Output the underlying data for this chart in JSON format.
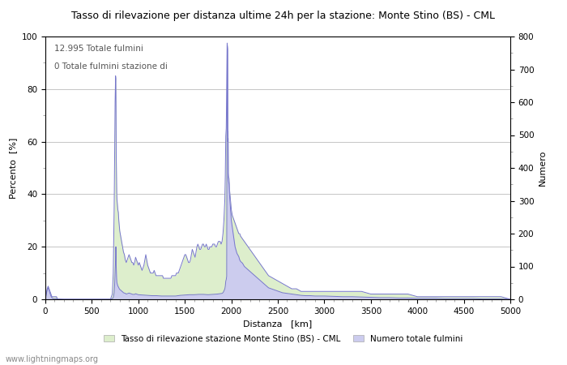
{
  "title": "Tasso di rilevazione per distanza ultime 24h per la stazione: Monte Stino (BS) - CML",
  "xlabel": "Distanza   [km]",
  "ylabel_left": "Percento  [%]",
  "ylabel_right": "Numero",
  "annotation_line1": "12.995 Totale fulmini",
  "annotation_line2": "0 Totale fulmini stazione di",
  "xlim": [
    0,
    5000
  ],
  "ylim_left": [
    0,
    100
  ],
  "ylim_right": [
    0,
    800
  ],
  "xticks": [
    0,
    500,
    1000,
    1500,
    2000,
    2500,
    3000,
    3500,
    4000,
    4500,
    5000
  ],
  "yticks_left": [
    0,
    20,
    40,
    60,
    80,
    100
  ],
  "yticks_right": [
    0,
    100,
    200,
    300,
    400,
    500,
    600,
    700,
    800
  ],
  "legend_label_green": "Tasso di rilevazione stazione Monte Stino (BS) - CML",
  "legend_label_blue": "Numero totale fulmini",
  "watermark": "www.lightningmaps.org",
  "background_color": "#ffffff",
  "plot_bg_color": "#ffffff",
  "grid_color": "#999999",
  "line_color": "#7777cc",
  "fill_color_blue": "#ccccee",
  "fill_color_green": "#ddeecc",
  "detection_rate": [
    [
      0,
      0
    ],
    [
      10,
      2
    ],
    [
      20,
      4
    ],
    [
      30,
      5
    ],
    [
      40,
      4
    ],
    [
      50,
      3
    ],
    [
      60,
      2
    ],
    [
      70,
      1
    ],
    [
      80,
      1
    ],
    [
      90,
      1
    ],
    [
      100,
      1
    ],
    [
      110,
      1
    ],
    [
      120,
      1
    ],
    [
      130,
      0
    ],
    [
      140,
      0
    ],
    [
      150,
      0
    ],
    [
      160,
      0
    ],
    [
      170,
      0
    ],
    [
      180,
      0
    ],
    [
      190,
      0
    ],
    [
      200,
      0
    ],
    [
      210,
      0
    ],
    [
      220,
      0
    ],
    [
      230,
      0
    ],
    [
      240,
      0
    ],
    [
      250,
      0
    ],
    [
      260,
      0
    ],
    [
      270,
      0
    ],
    [
      280,
      0
    ],
    [
      290,
      0
    ],
    [
      300,
      0
    ],
    [
      310,
      0
    ],
    [
      320,
      0
    ],
    [
      330,
      0
    ],
    [
      340,
      0
    ],
    [
      350,
      0
    ],
    [
      360,
      0
    ],
    [
      370,
      0
    ],
    [
      380,
      0
    ],
    [
      390,
      0
    ],
    [
      400,
      0
    ],
    [
      410,
      0
    ],
    [
      420,
      0
    ],
    [
      430,
      0
    ],
    [
      440,
      0
    ],
    [
      450,
      0
    ],
    [
      460,
      0
    ],
    [
      470,
      0
    ],
    [
      480,
      0
    ],
    [
      490,
      0
    ],
    [
      500,
      0
    ],
    [
      510,
      0
    ],
    [
      520,
      0
    ],
    [
      530,
      0
    ],
    [
      540,
      0
    ],
    [
      550,
      0
    ],
    [
      560,
      0
    ],
    [
      570,
      0
    ],
    [
      580,
      0
    ],
    [
      590,
      0
    ],
    [
      600,
      0
    ],
    [
      610,
      0
    ],
    [
      620,
      0
    ],
    [
      630,
      0
    ],
    [
      640,
      0
    ],
    [
      650,
      0
    ],
    [
      660,
      0
    ],
    [
      670,
      0
    ],
    [
      680,
      0
    ],
    [
      690,
      0
    ],
    [
      700,
      0
    ],
    [
      710,
      1
    ],
    [
      720,
      2
    ],
    [
      730,
      10
    ],
    [
      740,
      35
    ],
    [
      745,
      55
    ],
    [
      750,
      75
    ],
    [
      755,
      85
    ],
    [
      758,
      84
    ],
    [
      760,
      73
    ],
    [
      762,
      55
    ],
    [
      764,
      50
    ],
    [
      766,
      43
    ],
    [
      768,
      40
    ],
    [
      770,
      38
    ],
    [
      775,
      36
    ],
    [
      780,
      34
    ],
    [
      785,
      33
    ],
    [
      790,
      30
    ],
    [
      795,
      28
    ],
    [
      800,
      26
    ],
    [
      810,
      24
    ],
    [
      820,
      22
    ],
    [
      830,
      20
    ],
    [
      840,
      18
    ],
    [
      850,
      17
    ],
    [
      860,
      15
    ],
    [
      870,
      14
    ],
    [
      880,
      15
    ],
    [
      890,
      16
    ],
    [
      900,
      17
    ],
    [
      910,
      16
    ],
    [
      920,
      15
    ],
    [
      930,
      14
    ],
    [
      940,
      14
    ],
    [
      950,
      13
    ],
    [
      960,
      14
    ],
    [
      970,
      16
    ],
    [
      980,
      15
    ],
    [
      990,
      14
    ],
    [
      1000,
      13
    ],
    [
      1010,
      14
    ],
    [
      1020,
      13
    ],
    [
      1030,
      12
    ],
    [
      1040,
      11
    ],
    [
      1050,
      12
    ],
    [
      1060,
      13
    ],
    [
      1070,
      15
    ],
    [
      1080,
      17
    ],
    [
      1090,
      15
    ],
    [
      1100,
      13
    ],
    [
      1110,
      12
    ],
    [
      1120,
      11
    ],
    [
      1130,
      10
    ],
    [
      1140,
      10
    ],
    [
      1150,
      10
    ],
    [
      1160,
      10
    ],
    [
      1170,
      11
    ],
    [
      1180,
      10
    ],
    [
      1190,
      9
    ],
    [
      1200,
      9
    ],
    [
      1210,
      9
    ],
    [
      1220,
      9
    ],
    [
      1230,
      9
    ],
    [
      1240,
      9
    ],
    [
      1250,
      9
    ],
    [
      1260,
      9
    ],
    [
      1270,
      8
    ],
    [
      1280,
      8
    ],
    [
      1290,
      8
    ],
    [
      1300,
      8
    ],
    [
      1310,
      8
    ],
    [
      1320,
      8
    ],
    [
      1330,
      8
    ],
    [
      1340,
      8
    ],
    [
      1350,
      8
    ],
    [
      1360,
      9
    ],
    [
      1370,
      9
    ],
    [
      1380,
      9
    ],
    [
      1390,
      9
    ],
    [
      1400,
      9
    ],
    [
      1410,
      10
    ],
    [
      1420,
      10
    ],
    [
      1430,
      10
    ],
    [
      1440,
      11
    ],
    [
      1450,
      12
    ],
    [
      1460,
      13
    ],
    [
      1470,
      14
    ],
    [
      1480,
      15
    ],
    [
      1490,
      16
    ],
    [
      1500,
      17
    ],
    [
      1510,
      17
    ],
    [
      1520,
      16
    ],
    [
      1530,
      15
    ],
    [
      1540,
      14
    ],
    [
      1550,
      14
    ],
    [
      1560,
      15
    ],
    [
      1570,
      17
    ],
    [
      1580,
      19
    ],
    [
      1590,
      18
    ],
    [
      1600,
      17
    ],
    [
      1610,
      16
    ],
    [
      1620,
      18
    ],
    [
      1630,
      20
    ],
    [
      1640,
      21
    ],
    [
      1650,
      20
    ],
    [
      1660,
      19
    ],
    [
      1670,
      19
    ],
    [
      1680,
      20
    ],
    [
      1690,
      21
    ],
    [
      1700,
      21
    ],
    [
      1710,
      20
    ],
    [
      1720,
      20
    ],
    [
      1730,
      21
    ],
    [
      1740,
      20
    ],
    [
      1750,
      19
    ],
    [
      1760,
      19
    ],
    [
      1770,
      20
    ],
    [
      1780,
      20
    ],
    [
      1790,
      20
    ],
    [
      1800,
      21
    ],
    [
      1810,
      21
    ],
    [
      1820,
      21
    ],
    [
      1830,
      20
    ],
    [
      1840,
      20
    ],
    [
      1850,
      21
    ],
    [
      1860,
      22
    ],
    [
      1870,
      22
    ],
    [
      1880,
      22
    ],
    [
      1890,
      21
    ],
    [
      1900,
      22
    ],
    [
      1910,
      25
    ],
    [
      1920,
      30
    ],
    [
      1930,
      38
    ],
    [
      1935,
      47
    ],
    [
      1940,
      62
    ],
    [
      1945,
      65
    ],
    [
      1950,
      79
    ],
    [
      1955,
      97
    ],
    [
      1960,
      95
    ],
    [
      1963,
      62
    ],
    [
      1965,
      64
    ],
    [
      1967,
      48
    ],
    [
      1970,
      47
    ],
    [
      1975,
      46
    ],
    [
      1980,
      42
    ],
    [
      1985,
      40
    ],
    [
      1990,
      38
    ],
    [
      1995,
      36
    ],
    [
      2000,
      34
    ],
    [
      2010,
      32
    ],
    [
      2020,
      31
    ],
    [
      2030,
      30
    ],
    [
      2040,
      29
    ],
    [
      2050,
      28
    ],
    [
      2060,
      27
    ],
    [
      2070,
      26
    ],
    [
      2080,
      25
    ],
    [
      2090,
      25
    ],
    [
      2100,
      24
    ],
    [
      2120,
      23
    ],
    [
      2140,
      22
    ],
    [
      2160,
      21
    ],
    [
      2180,
      20
    ],
    [
      2200,
      19
    ],
    [
      2220,
      18
    ],
    [
      2240,
      17
    ],
    [
      2260,
      16
    ],
    [
      2280,
      15
    ],
    [
      2300,
      14
    ],
    [
      2320,
      13
    ],
    [
      2340,
      12
    ],
    [
      2360,
      11
    ],
    [
      2380,
      10
    ],
    [
      2400,
      9
    ],
    [
      2450,
      8
    ],
    [
      2500,
      7
    ],
    [
      2550,
      6
    ],
    [
      2600,
      5
    ],
    [
      2650,
      4
    ],
    [
      2700,
      4
    ],
    [
      2750,
      3
    ],
    [
      2800,
      3
    ],
    [
      2850,
      3
    ],
    [
      2900,
      3
    ],
    [
      2950,
      3
    ],
    [
      3000,
      3
    ],
    [
      3100,
      3
    ],
    [
      3200,
      3
    ],
    [
      3300,
      3
    ],
    [
      3400,
      3
    ],
    [
      3500,
      2
    ],
    [
      3600,
      2
    ],
    [
      3700,
      2
    ],
    [
      3800,
      2
    ],
    [
      3900,
      2
    ],
    [
      4000,
      1
    ],
    [
      4100,
      1
    ],
    [
      4200,
      1
    ],
    [
      4300,
      1
    ],
    [
      4400,
      1
    ],
    [
      4500,
      1
    ],
    [
      4600,
      1
    ],
    [
      4700,
      1
    ],
    [
      4800,
      1
    ],
    [
      4900,
      1
    ],
    [
      5000,
      0
    ]
  ],
  "total_lightning": [
    [
      0,
      0
    ],
    [
      10,
      15
    ],
    [
      20,
      28
    ],
    [
      30,
      35
    ],
    [
      40,
      28
    ],
    [
      50,
      18
    ],
    [
      60,
      10
    ],
    [
      70,
      5
    ],
    [
      80,
      3
    ],
    [
      90,
      2
    ],
    [
      100,
      2
    ],
    [
      110,
      2
    ],
    [
      120,
      2
    ],
    [
      130,
      1
    ],
    [
      200,
      0
    ],
    [
      300,
      0
    ],
    [
      400,
      0
    ],
    [
      500,
      0
    ],
    [
      600,
      0
    ],
    [
      650,
      0
    ],
    [
      700,
      0
    ],
    [
      710,
      1
    ],
    [
      720,
      2
    ],
    [
      730,
      5
    ],
    [
      740,
      20
    ],
    [
      745,
      45
    ],
    [
      750,
      80
    ],
    [
      755,
      120
    ],
    [
      758,
      160
    ],
    [
      760,
      140
    ],
    [
      762,
      100
    ],
    [
      764,
      80
    ],
    [
      766,
      65
    ],
    [
      768,
      55
    ],
    [
      770,
      50
    ],
    [
      775,
      45
    ],
    [
      780,
      40
    ],
    [
      785,
      38
    ],
    [
      790,
      35
    ],
    [
      795,
      32
    ],
    [
      800,
      30
    ],
    [
      810,
      28
    ],
    [
      820,
      25
    ],
    [
      830,
      23
    ],
    [
      840,
      20
    ],
    [
      850,
      19
    ],
    [
      860,
      18
    ],
    [
      870,
      16
    ],
    [
      880,
      17
    ],
    [
      890,
      18
    ],
    [
      900,
      19
    ],
    [
      910,
      18
    ],
    [
      920,
      17
    ],
    [
      930,
      16
    ],
    [
      940,
      15
    ],
    [
      950,
      15
    ],
    [
      960,
      15
    ],
    [
      970,
      17
    ],
    [
      980,
      16
    ],
    [
      990,
      15
    ],
    [
      1000,
      14
    ],
    [
      1050,
      13
    ],
    [
      1100,
      12
    ],
    [
      1150,
      11
    ],
    [
      1200,
      11
    ],
    [
      1250,
      10
    ],
    [
      1300,
      10
    ],
    [
      1350,
      10
    ],
    [
      1400,
      10
    ],
    [
      1450,
      12
    ],
    [
      1500,
      13
    ],
    [
      1550,
      14
    ],
    [
      1600,
      14
    ],
    [
      1650,
      15
    ],
    [
      1700,
      15
    ],
    [
      1750,
      14
    ],
    [
      1800,
      15
    ],
    [
      1850,
      16
    ],
    [
      1900,
      18
    ],
    [
      1910,
      20
    ],
    [
      1920,
      25
    ],
    [
      1930,
      32
    ],
    [
      1935,
      40
    ],
    [
      1940,
      55
    ],
    [
      1945,
      60
    ],
    [
      1950,
      70
    ],
    [
      1955,
      780
    ],
    [
      1960,
      760
    ],
    [
      1963,
      480
    ],
    [
      1965,
      490
    ],
    [
      1967,
      370
    ],
    [
      1970,
      360
    ],
    [
      1975,
      350
    ],
    [
      1980,
      320
    ],
    [
      1985,
      300
    ],
    [
      1990,
      280
    ],
    [
      1995,
      260
    ],
    [
      2000,
      240
    ],
    [
      2010,
      220
    ],
    [
      2020,
      200
    ],
    [
      2030,
      180
    ],
    [
      2040,
      160
    ],
    [
      2050,
      150
    ],
    [
      2060,
      140
    ],
    [
      2070,
      135
    ],
    [
      2080,
      130
    ],
    [
      2090,
      120
    ],
    [
      2100,
      115
    ],
    [
      2120,
      110
    ],
    [
      2140,
      100
    ],
    [
      2160,
      95
    ],
    [
      2180,
      90
    ],
    [
      2200,
      85
    ],
    [
      2220,
      80
    ],
    [
      2240,
      75
    ],
    [
      2260,
      70
    ],
    [
      2280,
      65
    ],
    [
      2300,
      60
    ],
    [
      2320,
      55
    ],
    [
      2340,
      50
    ],
    [
      2360,
      45
    ],
    [
      2380,
      40
    ],
    [
      2400,
      35
    ],
    [
      2450,
      30
    ],
    [
      2500,
      25
    ],
    [
      2550,
      20
    ],
    [
      2600,
      18
    ],
    [
      2650,
      16
    ],
    [
      2700,
      14
    ],
    [
      2750,
      12
    ],
    [
      2800,
      11
    ],
    [
      2850,
      11
    ],
    [
      2900,
      10
    ],
    [
      2950,
      10
    ],
    [
      3000,
      10
    ],
    [
      3100,
      9
    ],
    [
      3200,
      8
    ],
    [
      3300,
      8
    ],
    [
      3400,
      7
    ],
    [
      3500,
      6
    ],
    [
      3600,
      5
    ],
    [
      3700,
      5
    ],
    [
      3800,
      4
    ],
    [
      3900,
      4
    ],
    [
      4000,
      3
    ],
    [
      4100,
      3
    ],
    [
      4200,
      3
    ],
    [
      4300,
      2
    ],
    [
      4400,
      2
    ],
    [
      4500,
      2
    ],
    [
      4600,
      2
    ],
    [
      4700,
      1
    ],
    [
      4800,
      1
    ],
    [
      4900,
      1
    ],
    [
      5000,
      0
    ]
  ]
}
